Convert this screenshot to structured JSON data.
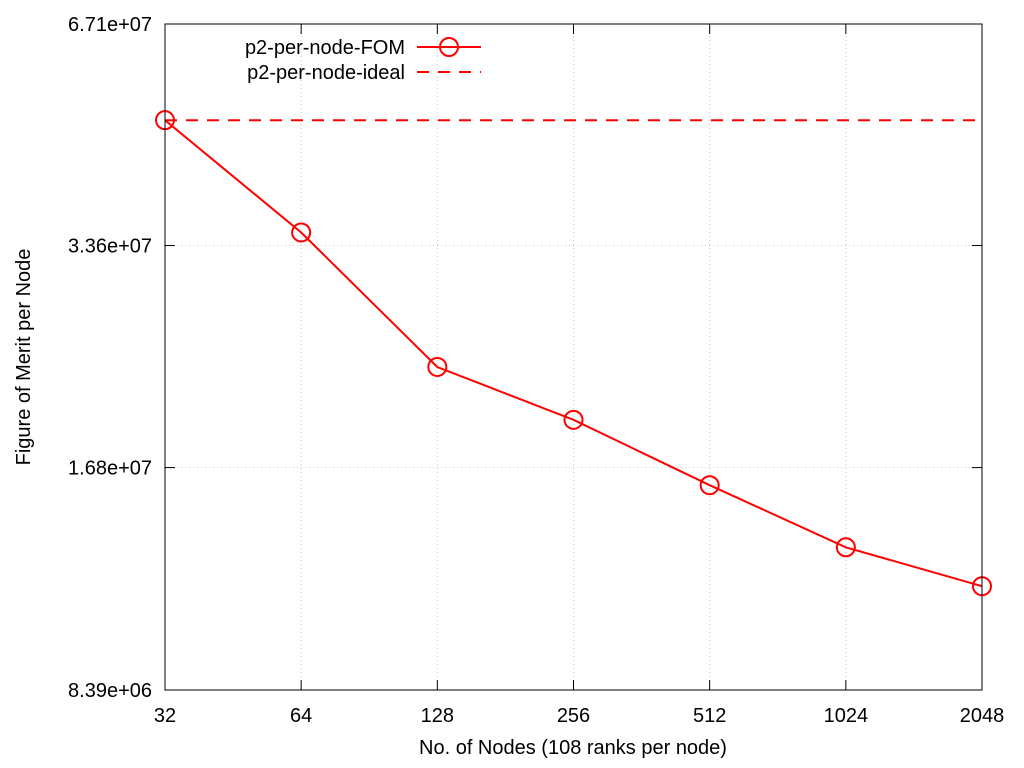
{
  "chart_data": {
    "type": "line",
    "xlabel": "No. of Nodes (108 ranks per node)",
    "ylabel": "Figure of Merit per Node",
    "x_scale": "log2",
    "y_scale": "log",
    "xlim": [
      32,
      2048
    ],
    "ylim": [
      8390000,
      67100000
    ],
    "x_ticks": [
      "32",
      "64",
      "128",
      "256",
      "512",
      "1024",
      "2048"
    ],
    "y_ticks": [
      "8.39e+06",
      "1.68e+07",
      "3.36e+07",
      "6.71e+07"
    ],
    "grid": true,
    "legend_position": "top-left",
    "colors": {
      "series": "#ff0000",
      "axis": "#000000",
      "grid": "#c8c8c8"
    },
    "series": [
      {
        "name": "p2-per-node-FOM",
        "style": "solid-circle-markers",
        "x": [
          32,
          64,
          128,
          256,
          512,
          1024,
          2048
        ],
        "y": [
          49700000,
          35000000,
          23000000,
          19500000,
          15900000,
          13100000,
          11600000
        ]
      },
      {
        "name": "p2-per-node-ideal",
        "style": "dashed",
        "x": [
          32,
          64,
          128,
          256,
          512,
          1024,
          2048
        ],
        "y": [
          49700000,
          49700000,
          49700000,
          49700000,
          49700000,
          49700000,
          49700000
        ]
      }
    ]
  }
}
